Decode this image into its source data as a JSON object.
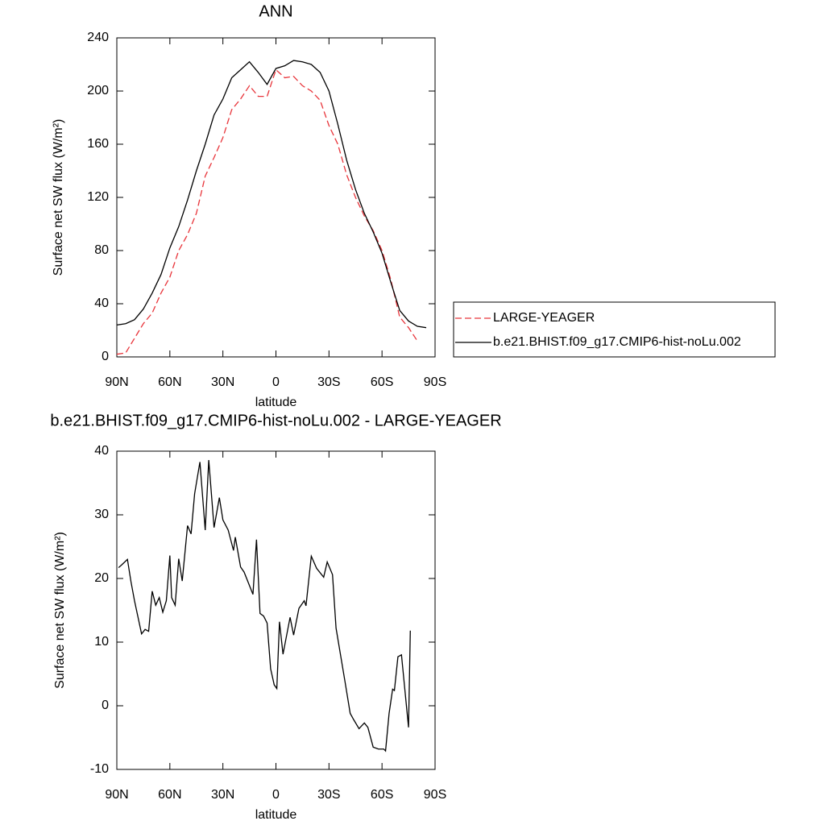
{
  "chart_data": [
    {
      "type": "line",
      "title": "ANN",
      "xlabel": "latitude",
      "ylabel": "Surface net SW flux (W/m²)",
      "x": [
        90,
        85,
        80,
        75,
        70,
        65,
        60,
        55,
        50,
        45,
        40,
        35,
        30,
        25,
        20,
        15,
        10,
        5,
        0,
        -5,
        -10,
        -15,
        -20,
        -25,
        -30,
        -35,
        -40,
        -45,
        -50,
        -55,
        -60,
        -65,
        -70,
        -75,
        -80,
        -85,
        -90
      ],
      "series": [
        {
          "name": "LARGE-YEAGER",
          "color": "#e8343a",
          "line_style": "dashed",
          "values": [
            2,
            3,
            14,
            25,
            33,
            48,
            60,
            80,
            92,
            108,
            136,
            150,
            165,
            186,
            194,
            204,
            196,
            196,
            216,
            210,
            211,
            204,
            200,
            193,
            174,
            160,
            137,
            120,
            106,
            95,
            80,
            58,
            30,
            22,
            12,
            null,
            null
          ]
        },
        {
          "name": "b.e21.BHIST.f09_g17.CMIP6-hist-noLu.002",
          "color": "#000000",
          "line_style": "solid",
          "values": [
            24,
            25,
            28,
            36,
            48,
            62,
            82,
            98,
            118,
            140,
            160,
            182,
            194,
            210,
            216,
            222,
            214,
            205,
            217,
            219,
            223,
            222,
            220,
            214,
            200,
            175,
            148,
            126,
            108,
            94,
            78,
            56,
            35,
            27,
            23,
            22,
            null
          ]
        }
      ],
      "xlim": [
        90,
        -90
      ],
      "xticks": [
        {
          "value": 90,
          "label": "90N"
        },
        {
          "value": 60,
          "label": "60N"
        },
        {
          "value": 30,
          "label": "30N"
        },
        0,
        {
          "value": -30,
          "label": "30S"
        },
        {
          "value": -60,
          "label": "60S"
        },
        {
          "value": -90,
          "label": "90S"
        }
      ],
      "ylim": [
        0,
        240
      ],
      "yticks": [
        0,
        40,
        80,
        120,
        160,
        200,
        240
      ],
      "legend": "right"
    },
    {
      "type": "line",
      "title": "b.e21.BHIST.f09_g17.CMIP6-hist-noLu.002 - LARGE-YEAGER",
      "xlabel": "latitude",
      "ylabel": "Surface net SW flux (W/m²)",
      "x": [
        89,
        87,
        84,
        82,
        80,
        76,
        74,
        72,
        70,
        68,
        66,
        64,
        62,
        60,
        59,
        57,
        55,
        53,
        50,
        48,
        46,
        43,
        40,
        38,
        35,
        32,
        30,
        27,
        24,
        23,
        20,
        18,
        13,
        11,
        9,
        7,
        5,
        3,
        1,
        -0.5,
        -2,
        -4,
        -8,
        -10,
        -13,
        -16,
        -17,
        -20,
        -23,
        -27,
        -29,
        -32,
        -34,
        -39,
        -42,
        -44,
        -47,
        -50,
        -52,
        -55,
        -58,
        -61,
        -62,
        -64,
        -66,
        -67,
        -69,
        -71,
        -75,
        -76
      ],
      "values": [
        21.7,
        22.2,
        23,
        19.5,
        16.5,
        11.3,
        12,
        11.7,
        18,
        15.8,
        17,
        14.7,
        16.5,
        23.6,
        17,
        15.8,
        23.1,
        19.6,
        28.3,
        27,
        33.3,
        38.3,
        27.6,
        38.6,
        28,
        32.7,
        29.2,
        27.6,
        24.4,
        26.5,
        21.8,
        21,
        17.5,
        26.1,
        14.5,
        14.1,
        13,
        5.8,
        3.3,
        2.7,
        13.2,
        8.1,
        13.9,
        11.1,
        15.3,
        16.5,
        15.7,
        23.5,
        21.6,
        20.2,
        22.6,
        20.6,
        12.2,
        3.9,
        -1.2,
        -2.2,
        -3.6,
        -2.7,
        -3.4,
        -6.5,
        -6.8,
        -6.8,
        -7.1,
        -1.2,
        2.6,
        2.4,
        7.7,
        8,
        -3.4,
        11.8
      ],
      "color": "#000000",
      "xlim": [
        90,
        -90
      ],
      "xticks": [
        {
          "value": 90,
          "label": "90N"
        },
        {
          "value": 60,
          "label": "60N"
        },
        {
          "value": 30,
          "label": "30N"
        },
        0,
        {
          "value": -30,
          "label": "30S"
        },
        {
          "value": -60,
          "label": "60S"
        },
        {
          "value": -90,
          "label": "90S"
        }
      ],
      "ylim": [
        -10,
        40
      ],
      "yticks": [
        -10,
        0,
        10,
        20,
        30,
        40
      ]
    }
  ]
}
